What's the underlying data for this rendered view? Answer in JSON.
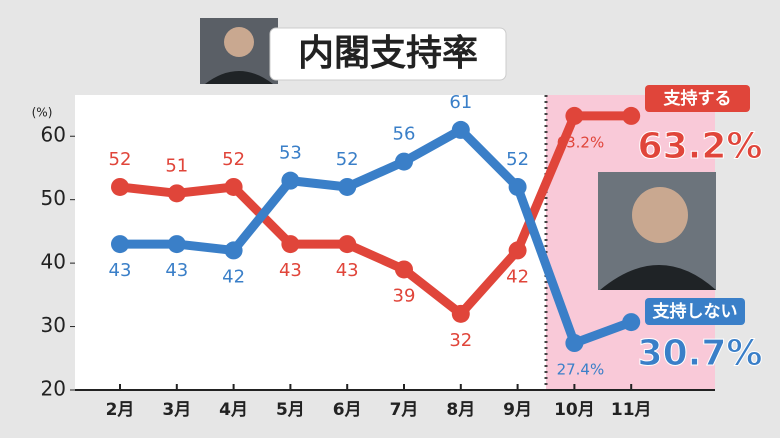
{
  "chart_data": {
    "type": "line",
    "title": "内閣支持率",
    "y_label": "(%)",
    "categories": [
      "2月",
      "3月",
      "4月",
      "5月",
      "6月",
      "7月",
      "8月",
      "9月",
      "10月",
      "11月"
    ],
    "series": [
      {
        "name": "支持する",
        "color": "#e0453a",
        "values": [
          52,
          51,
          52,
          43,
          43,
          39,
          32,
          42,
          63.2,
          63.2
        ],
        "value_labels": [
          "52",
          "51",
          "52",
          "43",
          "43",
          "39",
          "32",
          "42",
          "63.2%",
          "63.2%"
        ]
      },
      {
        "name": "支持しない",
        "color": "#3a7fc8",
        "values": [
          43,
          43,
          42,
          53,
          52,
          56,
          61,
          52,
          27.4,
          30.7
        ],
        "value_labels": [
          "43",
          "43",
          "42",
          "53",
          "52",
          "56",
          "61",
          "52",
          "27.4%",
          "30.7%"
        ]
      }
    ],
    "ylim": [
      20,
      66.5
    ],
    "yticks": [
      20,
      30,
      40,
      50,
      60
    ]
  }
}
